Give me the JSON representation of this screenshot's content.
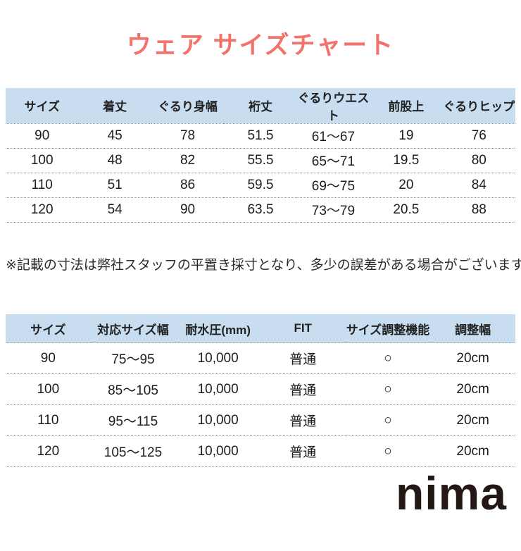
{
  "page": {
    "title": "ウェア サイズチャート",
    "note": "※記載の寸法は弊社スタッフの平置き採寸となり、多少の誤差がある場合がございます。",
    "brand_logo": "nima"
  },
  "colors": {
    "title_text": "#f3726c",
    "table_header_bg": "#c8def0",
    "logo_text": "#231815",
    "body_text": "#1c1c1c"
  },
  "chart_data": [
    {
      "type": "table",
      "title": "ウェア サイズチャート",
      "headers": [
        "サイズ",
        "着丈",
        "ぐるり身幅",
        "裄丈",
        "ぐるりウエスト",
        "前股上",
        "ぐるりヒップ"
      ],
      "rows": [
        [
          "90",
          "45",
          "78",
          "51.5",
          "61〜67",
          "19",
          "76"
        ],
        [
          "100",
          "48",
          "82",
          "55.5",
          "65〜71",
          "19.5",
          "80"
        ],
        [
          "110",
          "51",
          "86",
          "59.5",
          "69〜75",
          "20",
          "84"
        ],
        [
          "120",
          "54",
          "90",
          "63.5",
          "73〜79",
          "20.5",
          "88"
        ]
      ]
    },
    {
      "type": "table",
      "title": "",
      "headers": [
        "サイズ",
        "対応サイズ幅",
        "耐水圧(mm)",
        "FIT",
        "サイズ調整機能",
        "調整幅"
      ],
      "rows": [
        [
          "90",
          "75〜95",
          "10,000",
          "普通",
          "○",
          "20cm"
        ],
        [
          "100",
          "85〜105",
          "10,000",
          "普通",
          "○",
          "20cm"
        ],
        [
          "110",
          "95〜115",
          "10,000",
          "普通",
          "○",
          "20cm"
        ],
        [
          "120",
          "105〜125",
          "10,000",
          "普通",
          "○",
          "20cm"
        ]
      ]
    }
  ]
}
